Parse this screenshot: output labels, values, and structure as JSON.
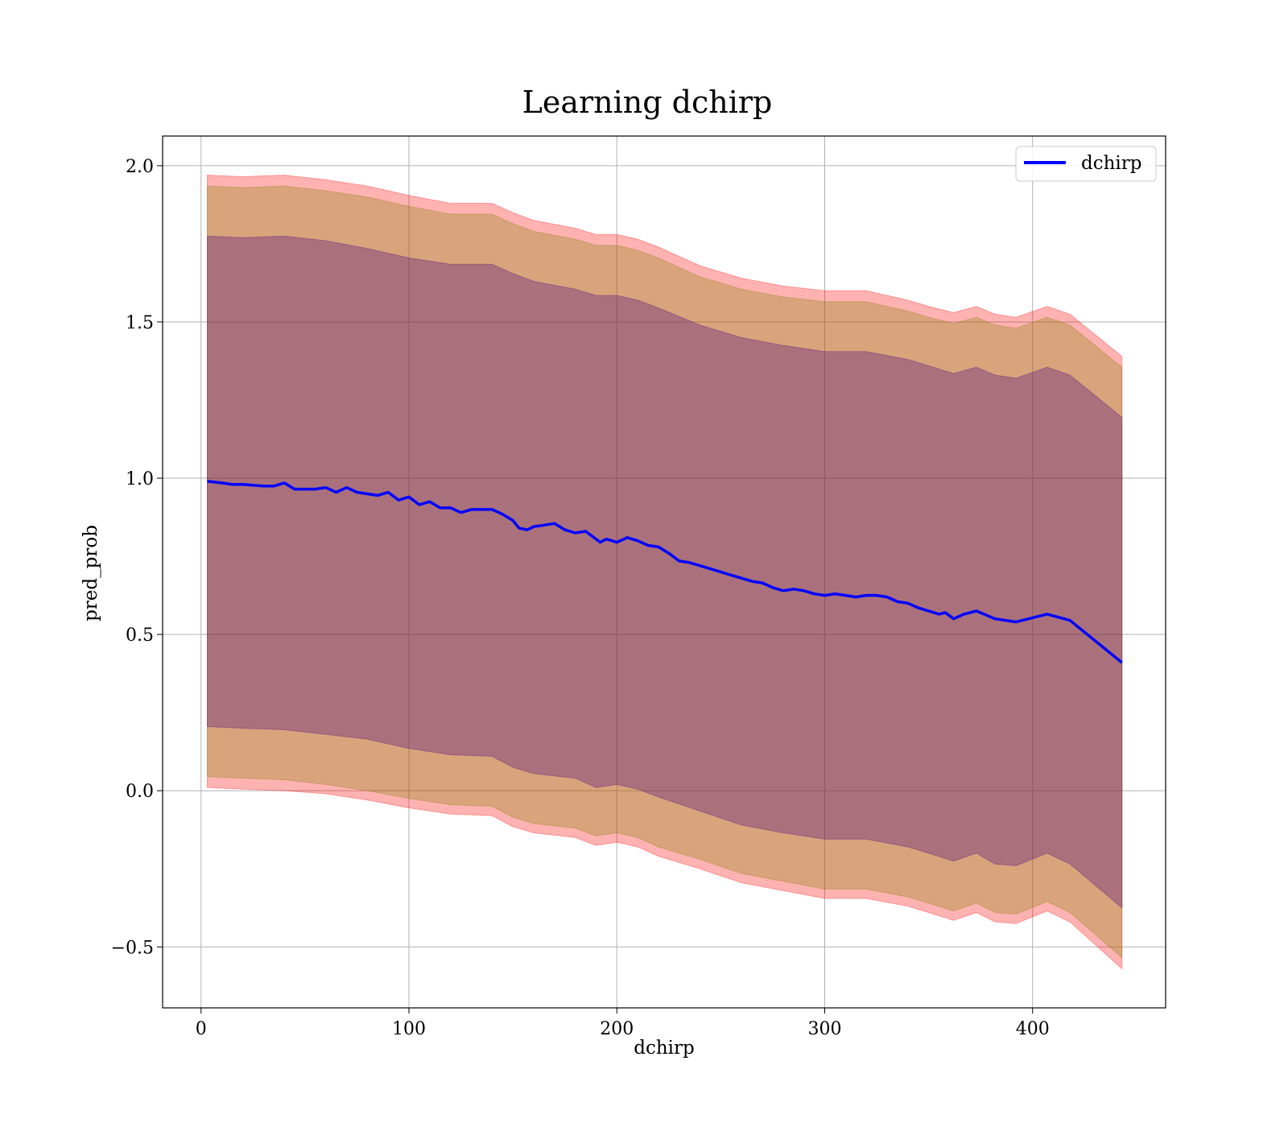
{
  "chart_data": {
    "type": "line",
    "title": "Learning dchirp",
    "xlabel": "dchirp",
    "ylabel": "pred_prob",
    "xlim": [
      -18.5,
      464
    ],
    "ylim": [
      -0.695,
      2.095
    ],
    "x_ticks": [
      0,
      100,
      200,
      300,
      400
    ],
    "x_tick_labels": [
      "0",
      "100",
      "200",
      "300",
      "400"
    ],
    "y_ticks": [
      -0.5,
      0.0,
      0.5,
      1.0,
      1.5,
      2.0
    ],
    "y_tick_labels": [
      "−0.5",
      "0.0",
      "0.5",
      "1.0",
      "1.5",
      "2.0"
    ],
    "grid": true,
    "legend": {
      "position": "top-right",
      "entries": [
        "dchirp"
      ]
    },
    "series": [
      {
        "name": "dchirp",
        "color": "#0000ff",
        "points": [
          [
            3,
            0.99
          ],
          [
            10,
            0.985
          ],
          [
            15,
            0.98
          ],
          [
            20,
            0.98
          ],
          [
            30,
            0.975
          ],
          [
            35,
            0.975
          ],
          [
            40,
            0.985
          ],
          [
            45,
            0.965
          ],
          [
            55,
            0.965
          ],
          [
            60,
            0.97
          ],
          [
            65,
            0.955
          ],
          [
            70,
            0.97
          ],
          [
            75,
            0.955
          ],
          [
            80,
            0.95
          ],
          [
            85,
            0.945
          ],
          [
            90,
            0.955
          ],
          [
            95,
            0.93
          ],
          [
            100,
            0.94
          ],
          [
            105,
            0.915
          ],
          [
            110,
            0.925
          ],
          [
            115,
            0.905
          ],
          [
            120,
            0.905
          ],
          [
            125,
            0.89
          ],
          [
            130,
            0.9
          ],
          [
            135,
            0.9
          ],
          [
            140,
            0.9
          ],
          [
            145,
            0.885
          ],
          [
            150,
            0.865
          ],
          [
            153,
            0.84
          ],
          [
            157,
            0.835
          ],
          [
            160,
            0.845
          ],
          [
            165,
            0.85
          ],
          [
            170,
            0.855
          ],
          [
            175,
            0.835
          ],
          [
            180,
            0.825
          ],
          [
            185,
            0.83
          ],
          [
            188,
            0.815
          ],
          [
            192,
            0.795
          ],
          [
            195,
            0.805
          ],
          [
            200,
            0.795
          ],
          [
            205,
            0.81
          ],
          [
            210,
            0.8
          ],
          [
            215,
            0.785
          ],
          [
            220,
            0.78
          ],
          [
            225,
            0.76
          ],
          [
            230,
            0.735
          ],
          [
            235,
            0.73
          ],
          [
            240,
            0.72
          ],
          [
            245,
            0.71
          ],
          [
            250,
            0.7
          ],
          [
            255,
            0.69
          ],
          [
            260,
            0.68
          ],
          [
            265,
            0.67
          ],
          [
            270,
            0.665
          ],
          [
            275,
            0.65
          ],
          [
            280,
            0.64
          ],
          [
            285,
            0.645
          ],
          [
            290,
            0.64
          ],
          [
            295,
            0.63
          ],
          [
            300,
            0.625
          ],
          [
            305,
            0.63
          ],
          [
            310,
            0.625
          ],
          [
            315,
            0.62
          ],
          [
            320,
            0.625
          ],
          [
            325,
            0.625
          ],
          [
            330,
            0.62
          ],
          [
            335,
            0.605
          ],
          [
            340,
            0.6
          ],
          [
            345,
            0.585
          ],
          [
            350,
            0.575
          ],
          [
            355,
            0.565
          ],
          [
            358,
            0.57
          ],
          [
            362,
            0.55
          ],
          [
            367,
            0.565
          ],
          [
            373,
            0.575
          ],
          [
            382,
            0.55
          ],
          [
            392,
            0.54
          ],
          [
            407,
            0.565
          ],
          [
            418,
            0.545
          ],
          [
            443,
            0.41
          ]
        ]
      }
    ],
    "bands": [
      {
        "color": "#ff0000",
        "opacity": 0.3,
        "points": [
          [
            3,
            1.97,
            0.01
          ],
          [
            20,
            1.965,
            0.005
          ],
          [
            40,
            1.97,
            0.0
          ],
          [
            60,
            1.955,
            -0.01
          ],
          [
            80,
            1.935,
            -0.03
          ],
          [
            100,
            1.905,
            -0.055
          ],
          [
            120,
            1.88,
            -0.075
          ],
          [
            140,
            1.88,
            -0.08
          ],
          [
            150,
            1.85,
            -0.115
          ],
          [
            160,
            1.825,
            -0.135
          ],
          [
            180,
            1.8,
            -0.15
          ],
          [
            190,
            1.78,
            -0.175
          ],
          [
            200,
            1.78,
            -0.165
          ],
          [
            210,
            1.765,
            -0.18
          ],
          [
            220,
            1.74,
            -0.21
          ],
          [
            240,
            1.68,
            -0.25
          ],
          [
            260,
            1.64,
            -0.295
          ],
          [
            280,
            1.615,
            -0.32
          ],
          [
            300,
            1.6,
            -0.345
          ],
          [
            320,
            1.6,
            -0.345
          ],
          [
            340,
            1.57,
            -0.37
          ],
          [
            350,
            1.55,
            -0.39
          ],
          [
            362,
            1.53,
            -0.415
          ],
          [
            373,
            1.55,
            -0.39
          ],
          [
            382,
            1.525,
            -0.42
          ],
          [
            392,
            1.515,
            -0.425
          ],
          [
            407,
            1.55,
            -0.385
          ],
          [
            418,
            1.525,
            -0.42
          ],
          [
            443,
            1.39,
            -0.57
          ]
        ]
      },
      {
        "color": "#808000",
        "opacity": 0.3,
        "points": [
          [
            3,
            1.935,
            0.045
          ],
          [
            20,
            1.93,
            0.04
          ],
          [
            40,
            1.935,
            0.035
          ],
          [
            60,
            1.92,
            0.02
          ],
          [
            80,
            1.9,
            0.0
          ],
          [
            100,
            1.87,
            -0.025
          ],
          [
            120,
            1.845,
            -0.045
          ],
          [
            140,
            1.845,
            -0.05
          ],
          [
            150,
            1.815,
            -0.085
          ],
          [
            160,
            1.79,
            -0.105
          ],
          [
            180,
            1.765,
            -0.12
          ],
          [
            190,
            1.745,
            -0.145
          ],
          [
            200,
            1.745,
            -0.135
          ],
          [
            210,
            1.73,
            -0.15
          ],
          [
            220,
            1.705,
            -0.18
          ],
          [
            240,
            1.645,
            -0.22
          ],
          [
            260,
            1.605,
            -0.265
          ],
          [
            280,
            1.58,
            -0.29
          ],
          [
            300,
            1.565,
            -0.315
          ],
          [
            320,
            1.565,
            -0.315
          ],
          [
            340,
            1.535,
            -0.34
          ],
          [
            350,
            1.515,
            -0.36
          ],
          [
            362,
            1.495,
            -0.385
          ],
          [
            373,
            1.515,
            -0.36
          ],
          [
            382,
            1.49,
            -0.39
          ],
          [
            392,
            1.48,
            -0.395
          ],
          [
            407,
            1.515,
            -0.355
          ],
          [
            418,
            1.49,
            -0.39
          ],
          [
            443,
            1.355,
            -0.535
          ]
        ]
      },
      {
        "color": "#400080",
        "opacity": 0.3,
        "points": [
          [
            3,
            1.775,
            0.205
          ],
          [
            20,
            1.77,
            0.2
          ],
          [
            40,
            1.775,
            0.195
          ],
          [
            60,
            1.76,
            0.18
          ],
          [
            80,
            1.735,
            0.165
          ],
          [
            100,
            1.705,
            0.135
          ],
          [
            120,
            1.685,
            0.115
          ],
          [
            140,
            1.685,
            0.11
          ],
          [
            150,
            1.655,
            0.075
          ],
          [
            160,
            1.63,
            0.055
          ],
          [
            180,
            1.605,
            0.04
          ],
          [
            190,
            1.585,
            0.01
          ],
          [
            200,
            1.585,
            0.02
          ],
          [
            210,
            1.57,
            0.005
          ],
          [
            220,
            1.545,
            -0.02
          ],
          [
            240,
            1.49,
            -0.065
          ],
          [
            260,
            1.45,
            -0.11
          ],
          [
            280,
            1.425,
            -0.135
          ],
          [
            300,
            1.405,
            -0.155
          ],
          [
            320,
            1.405,
            -0.155
          ],
          [
            340,
            1.38,
            -0.18
          ],
          [
            350,
            1.36,
            -0.2
          ],
          [
            362,
            1.335,
            -0.225
          ],
          [
            373,
            1.355,
            -0.2
          ],
          [
            382,
            1.33,
            -0.235
          ],
          [
            392,
            1.32,
            -0.24
          ],
          [
            407,
            1.355,
            -0.2
          ],
          [
            418,
            1.33,
            -0.235
          ],
          [
            443,
            1.195,
            -0.375
          ]
        ]
      }
    ]
  }
}
